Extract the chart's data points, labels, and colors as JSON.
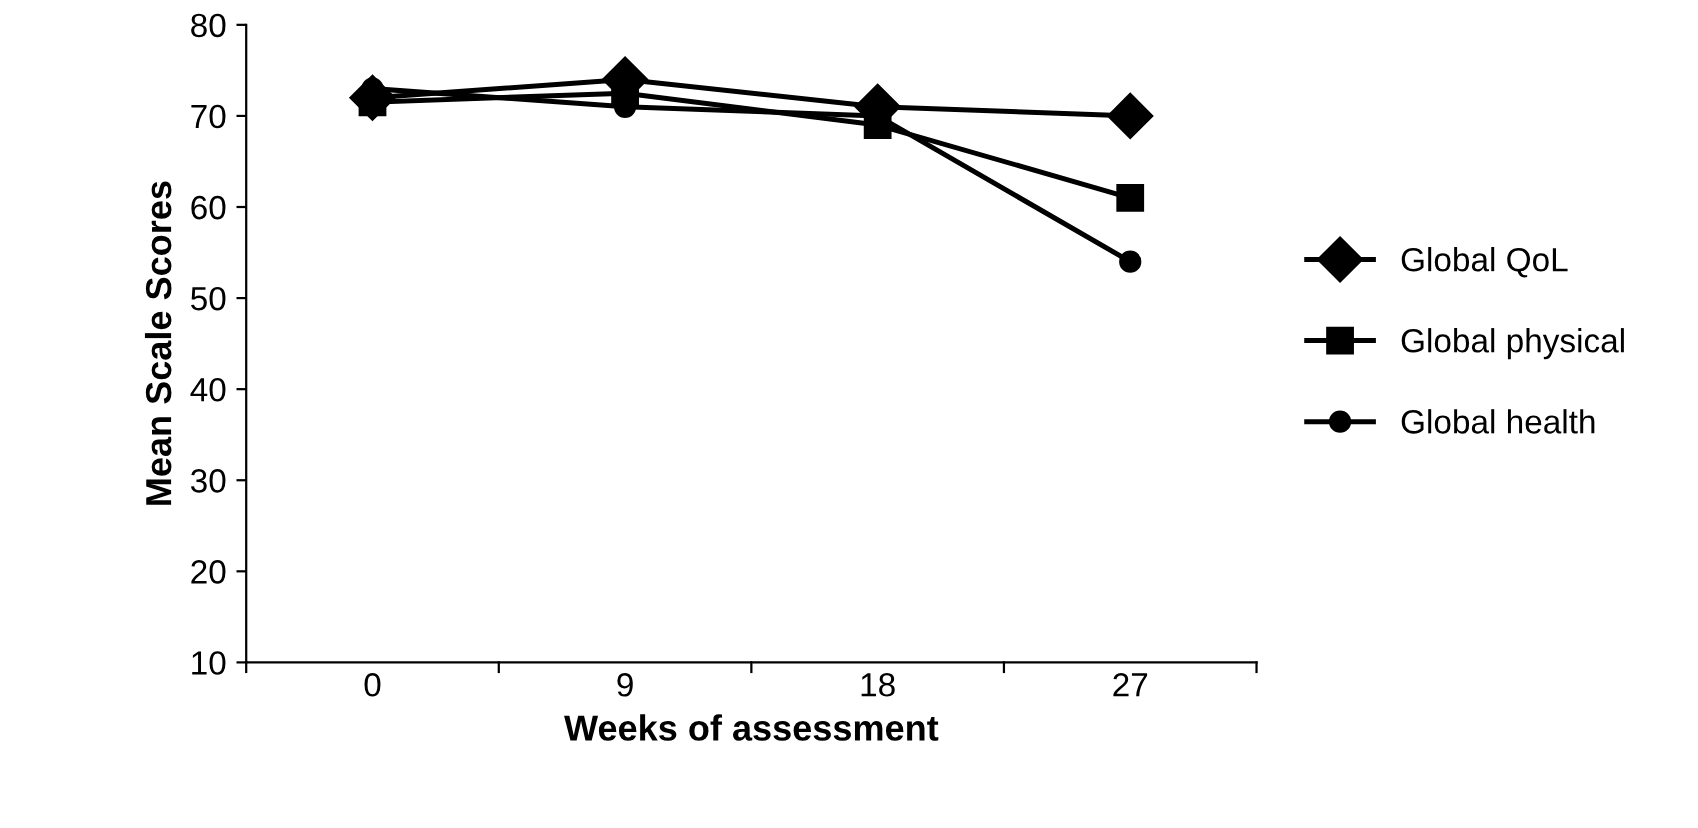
{
  "chart_data": {
    "type": "line",
    "xlabel": "Weeks of assessment",
    "ylabel": "Mean Scale Scores",
    "categories": [
      "0",
      "9",
      "18",
      "27"
    ],
    "series": [
      {
        "name": "Global QoL",
        "color": "#000000",
        "marker": "diamond",
        "values": [
          72,
          74,
          71,
          70
        ]
      },
      {
        "name": "Global physical",
        "color": "#000000",
        "marker": "square",
        "values": [
          71.5,
          72.5,
          69,
          61
        ]
      },
      {
        "name": "Global health",
        "color": "#000000",
        "marker": "circle",
        "values": [
          73,
          71,
          70,
          54
        ]
      }
    ],
    "ylim": [
      10,
      80
    ],
    "yticks": [
      10,
      20,
      30,
      40,
      50,
      60,
      70,
      80
    ],
    "grid": false,
    "legend": "right",
    "line_style": "solid"
  }
}
